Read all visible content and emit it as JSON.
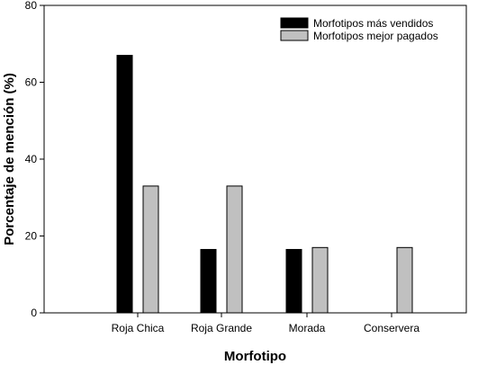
{
  "chart_data": {
    "type": "bar",
    "title": "",
    "xlabel": "Morfotipo",
    "ylabel": "Porcentaje de mención (%)",
    "ylim": [
      0,
      80
    ],
    "yticks": [
      0,
      20,
      40,
      60,
      80
    ],
    "categories": [
      "Roja Chica",
      "Roja Grande",
      "Morada",
      "Conservera"
    ],
    "series": [
      {
        "name": "Morfotipos más vendidos",
        "values": [
          67,
          16.5,
          16.5,
          0
        ],
        "color": "#000000"
      },
      {
        "name": "Morfotipos mejor pagados",
        "values": [
          33,
          33,
          17,
          17
        ],
        "color": "#c0c0c0"
      }
    ],
    "legend_position": "top-right",
    "grid": false
  }
}
